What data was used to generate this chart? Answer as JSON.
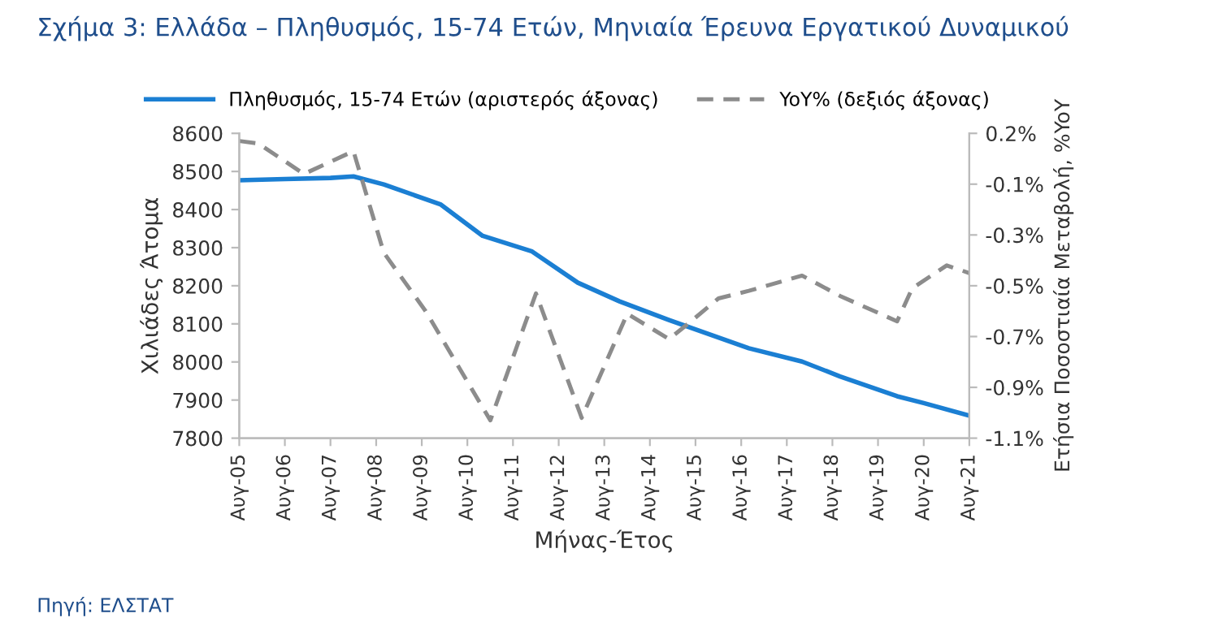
{
  "chart_data": {
    "type": "line",
    "title": "Σχήμα 3: Ελλάδα – Πληθυσμός, 15-74 Ετών, Μηνιαία Έρευνα Εργατικού Δυναμικού",
    "xlabel": "Μήνας-Έτος",
    "ylabel": "Χιλιάδες Άτομα",
    "y2label": "Ετήσια Ποσοστιαία Μεταβολή, %YoY",
    "annotations": [
      "Πηγή: ΕΛΣΤΑΤ"
    ],
    "series": [
      {
        "name": "Πληθυσμός, 15-74 Ετών (αριστερός άξονας)",
        "color": "#1b7fd3",
        "line_style": "solid",
        "x": [
          "2005-08",
          "2006-08",
          "2007-08",
          "2008-02",
          "2008-10",
          "2010-01",
          "2010-12",
          "2012-01",
          "2013-01",
          "2013-12",
          "2015-01",
          "2016-10",
          "2017-12",
          "2018-10",
          "2020-01",
          "2020-08",
          "2021-08"
        ],
        "values": [
          8477,
          8480,
          8483,
          8487,
          8466,
          8413,
          8331,
          8290,
          8208,
          8159,
          8110,
          8036,
          8001,
          7962,
          7910,
          7892,
          7859
        ]
      },
      {
        "name": "YoY% (δεξιός άξονας)",
        "color": "#8c8c8c",
        "line_style": "dashed",
        "axis": "y2",
        "x": [
          "2005-08",
          "2006-01",
          "2007-01",
          "2008-02",
          "2008-10",
          "2009-09",
          "2011-02",
          "2012-02",
          "2013-02",
          "2014-02",
          "2015-01",
          "2015-06",
          "2016-02",
          "2016-10",
          "2017-12",
          "2018-10",
          "2020-01",
          "2020-05",
          "2021-02",
          "2021-08"
        ],
        "values": [
          0.12,
          0.11,
          -0.01,
          0.08,
          -0.32,
          -0.55,
          -0.98,
          -0.48,
          -0.97,
          -0.56,
          -0.66,
          -0.6,
          -0.5,
          -0.47,
          -0.41,
          -0.49,
          -0.59,
          -0.46,
          -0.37,
          -0.4
        ]
      }
    ],
    "xlim": [
      "2005-08",
      "2021-08"
    ],
    "xticks": [
      {
        "value": "2005-08",
        "label": "Αυγ-05"
      },
      {
        "value": "2006-08",
        "label": "Αυγ-06"
      },
      {
        "value": "2007-08",
        "label": "Αυγ-07"
      },
      {
        "value": "2008-08",
        "label": "Αυγ-08"
      },
      {
        "value": "2009-08",
        "label": "Αυγ-09"
      },
      {
        "value": "2010-08",
        "label": "Αυγ-10"
      },
      {
        "value": "2011-08",
        "label": "Αυγ-11"
      },
      {
        "value": "2012-08",
        "label": "Αυγ-12"
      },
      {
        "value": "2013-08",
        "label": "Αυγ-13"
      },
      {
        "value": "2014-08",
        "label": "Αυγ-14"
      },
      {
        "value": "2015-08",
        "label": "Αυγ-15"
      },
      {
        "value": "2016-08",
        "label": "Αυγ-16"
      },
      {
        "value": "2017-08",
        "label": "Αυγ-17"
      },
      {
        "value": "2018-08",
        "label": "Αυγ-18"
      },
      {
        "value": "2019-08",
        "label": "Αυγ-19"
      },
      {
        "value": "2020-08",
        "label": "Αυγ-20"
      },
      {
        "value": "2021-08",
        "label": "Αυγ-21"
      }
    ],
    "ylim": [
      7800,
      8600
    ],
    "yticks": [
      7800,
      7900,
      8000,
      8100,
      8200,
      8300,
      8400,
      8500,
      8600
    ],
    "y2lim": [
      -1.05,
      0.15
    ],
    "y2ticks": [
      {
        "value": -1.05,
        "label": "-1.1%"
      },
      {
        "value": -0.85,
        "label": "-0.9%"
      },
      {
        "value": -0.65,
        "label": "-0.7%"
      },
      {
        "value": -0.45,
        "label": "-0.5%"
      },
      {
        "value": -0.25,
        "label": "-0.3%"
      },
      {
        "value": -0.05,
        "label": "-0.1%"
      },
      {
        "value": 0.15,
        "label": "0.2%"
      }
    ],
    "grid": false,
    "legend": "top",
    "marker": "none"
  }
}
